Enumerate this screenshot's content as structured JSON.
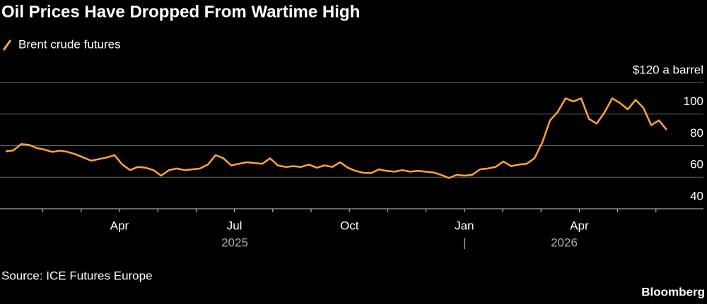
{
  "chart_data": {
    "type": "line",
    "title": "Oil Prices Have Dropped From Wartime High",
    "series": [
      {
        "name": "Brent crude futures",
        "color": "#ffa537",
        "values": [
          76.4,
          77,
          81,
          80.5,
          78.5,
          77.5,
          76,
          76.8,
          76,
          74.5,
          72.5,
          70.5,
          71.5,
          72.5,
          74,
          68,
          64.5,
          66.5,
          66,
          64.5,
          61,
          64.5,
          65.5,
          64.5,
          65,
          65.5,
          68,
          74,
          72,
          67.5,
          68.5,
          69.5,
          69,
          68.5,
          72,
          67.5,
          66.5,
          67,
          66.5,
          68,
          66,
          67.5,
          66.5,
          69.5,
          66,
          64,
          62.8,
          62.6,
          65,
          64,
          63.5,
          64.5,
          63.5,
          64,
          63.5,
          63,
          61.5,
          59.5,
          61.5,
          61,
          61.5,
          65,
          65.5,
          66.5,
          70,
          67,
          68,
          68.5,
          72,
          82,
          96,
          101.5,
          110,
          108,
          110,
          97,
          94,
          101,
          110,
          107,
          103,
          109,
          104,
          93,
          96,
          90
        ]
      }
    ],
    "ylim": [
      40,
      120
    ],
    "yticks": [
      40,
      60,
      80,
      100,
      {
        "value": 120,
        "label": "$120 a barrel"
      }
    ],
    "xtick_labels": [
      "Apr",
      "Jul",
      "Oct",
      "Jan",
      "Apr"
    ],
    "year_labels": [
      "2025",
      "2026"
    ],
    "grid": true,
    "source": "Source: ICE Futures Europe",
    "credit": "Bloomberg"
  }
}
